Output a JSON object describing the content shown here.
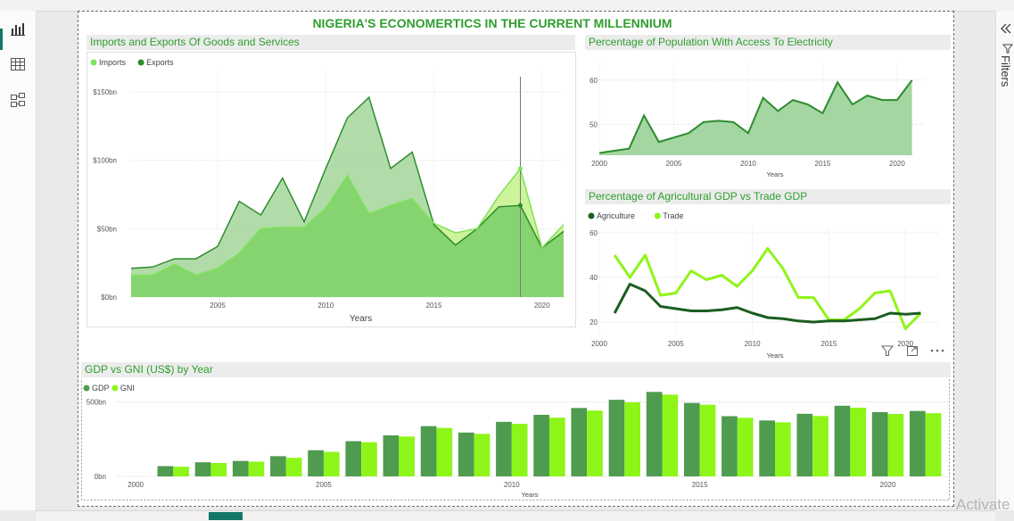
{
  "report": {
    "title": "NIGERIA'S  ECONOMERTICS  IN THE CURRENT MILLENNIUM"
  },
  "sidebar": {
    "filters_label": "Filters",
    "watermark": "Activate"
  },
  "colors": {
    "dark_green": "#2e8b2e",
    "light_green": "#7fe35a",
    "darkest_green": "#1b5e20",
    "lime": "#8ef519",
    "mid_green": "#4f9b4f",
    "title_green": "#2e9e2e"
  },
  "chart_data": [
    {
      "id": "imports-exports",
      "type": "area",
      "title": "Imports and Exports Of Goods and Services",
      "xlabel": "Years",
      "ylabel": "",
      "x": [
        2001,
        2002,
        2003,
        2004,
        2005,
        2006,
        2007,
        2008,
        2009,
        2010,
        2011,
        2012,
        2013,
        2014,
        2015,
        2016,
        2017,
        2018,
        2019,
        2020,
        2021
      ],
      "series": [
        {
          "name": "Imports",
          "values": [
            16,
            16,
            24,
            16,
            21,
            32,
            50,
            51,
            51,
            65,
            89,
            61,
            67,
            72,
            54,
            47,
            50,
            74,
            94,
            36,
            53
          ]
        },
        {
          "name": "Exports",
          "values": [
            21,
            22,
            28,
            28,
            37,
            70,
            60,
            87,
            55,
            94,
            131,
            146,
            94,
            106,
            53,
            38,
            50,
            66,
            67,
            36,
            48
          ]
        }
      ],
      "xticks": [
        2005,
        2010,
        2015,
        2020
      ],
      "yticks": [
        {
          "v": 0,
          "label": "$0bn"
        },
        {
          "v": 50,
          "label": "$50bn"
        },
        {
          "v": 100,
          "label": "$100bn"
        },
        {
          "v": 150,
          "label": "$150bn"
        }
      ],
      "ylim": [
        0,
        165
      ],
      "legend": "top-left",
      "grid": true,
      "marker_year": 2019
    },
    {
      "id": "electricity",
      "type": "area",
      "title": "Percentage of Population With Access To Electricity",
      "xlabel": "Years",
      "ylabel": "",
      "x": [
        2000,
        2001,
        2002,
        2003,
        2004,
        2005,
        2006,
        2007,
        2008,
        2009,
        2010,
        2011,
        2012,
        2013,
        2014,
        2015,
        2016,
        2017,
        2018,
        2019,
        2020,
        2021
      ],
      "series": [
        {
          "name": "",
          "values": [
            43.5,
            44,
            44.5,
            52,
            46,
            47,
            48,
            50.5,
            50.8,
            50.5,
            48,
            56,
            53,
            55.5,
            54.5,
            52.5,
            59.5,
            54.5,
            56.5,
            55.5,
            55.5,
            60
          ]
        }
      ],
      "xticks": [
        2000,
        2005,
        2010,
        2015,
        2020
      ],
      "yticks": [
        {
          "v": 50,
          "label": "50"
        },
        {
          "v": 60,
          "label": "60"
        }
      ],
      "ylim": [
        43,
        64
      ],
      "grid": true
    },
    {
      "id": "agri-trade",
      "type": "line",
      "title": "Percentage of Agricultural GDP vs Trade GDP",
      "xlabel": "Years",
      "ylabel": "",
      "x": [
        2001,
        2002,
        2003,
        2004,
        2005,
        2006,
        2007,
        2008,
        2009,
        2010,
        2011,
        2012,
        2013,
        2014,
        2015,
        2016,
        2017,
        2018,
        2019,
        2020,
        2021
      ],
      "series": [
        {
          "name": "Agriculture",
          "values": [
            24,
            37,
            34,
            27,
            26,
            25,
            25,
            25.5,
            26.5,
            24,
            22,
            21.5,
            20.5,
            20,
            20.5,
            20.5,
            21,
            21.5,
            24,
            23.5,
            24
          ]
        },
        {
          "name": "Trade",
          "values": [
            50,
            40,
            50,
            32,
            33,
            43,
            39,
            41,
            36,
            43,
            53,
            44,
            31,
            31,
            21,
            21,
            26,
            33,
            34,
            17,
            24
          ]
        }
      ],
      "xticks": [
        2000,
        2005,
        2010,
        2015,
        2020
      ],
      "yticks": [
        {
          "v": 20,
          "label": "20"
        },
        {
          "v": 40,
          "label": "40"
        },
        {
          "v": 60,
          "label": "60"
        }
      ],
      "ylim": [
        14,
        62
      ],
      "legend": "top-left",
      "grid": true
    },
    {
      "id": "gdp-gni",
      "type": "bar",
      "title": "GDP vs GNI (US$) by Year",
      "xlabel": "Years",
      "ylabel": "",
      "categories": [
        2001,
        2002,
        2003,
        2004,
        2005,
        2006,
        2007,
        2008,
        2009,
        2010,
        2011,
        2012,
        2013,
        2014,
        2015,
        2016,
        2017,
        2018,
        2019,
        2020,
        2021
      ],
      "series": [
        {
          "name": "GDP",
          "values": [
            69,
            95,
            104,
            136,
            176,
            237,
            276,
            338,
            295,
            367,
            414,
            460,
            515,
            568,
            494,
            405,
            376,
            421,
            475,
            432,
            440
          ]
        },
        {
          "name": "GNI",
          "values": [
            65,
            90,
            99,
            125,
            165,
            230,
            268,
            326,
            286,
            354,
            395,
            443,
            498,
            550,
            482,
            394,
            364,
            406,
            462,
            420,
            425
          ]
        }
      ],
      "xticks": [
        2000,
        2005,
        2010,
        2015,
        2020
      ],
      "yticks": [
        {
          "v": 0,
          "label": "0bn"
        },
        {
          "v": 500,
          "label": "500bn"
        }
      ],
      "ylim": [
        0,
        600
      ],
      "legend": "top-left",
      "grid": true
    }
  ]
}
